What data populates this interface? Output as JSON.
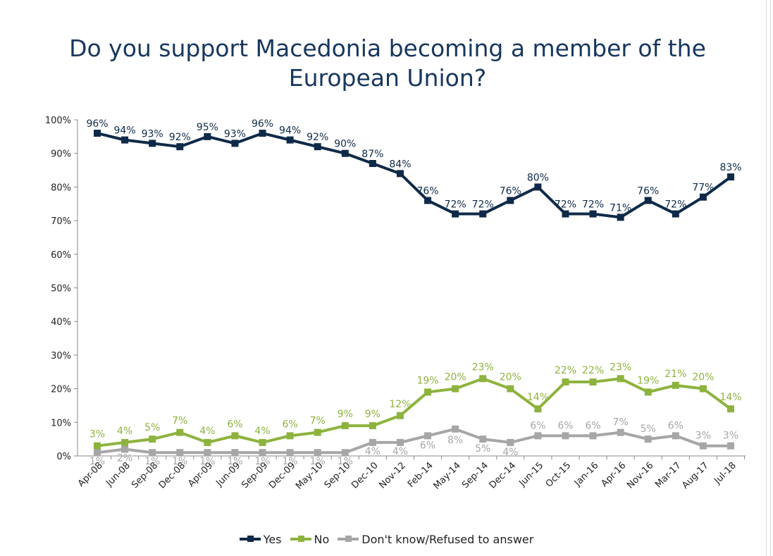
{
  "title_line1": "Do you support Macedonia becoming a member of the",
  "title_line2": "European Union?",
  "chart_data": {
    "type": "line",
    "title": "Do you support Macedonia becoming a member of the European Union?",
    "categories": [
      "Apr-08",
      "Jun-08",
      "Sep-08",
      "Dec-08",
      "Apr-09",
      "Jun-09",
      "Sep-09",
      "Dec-09",
      "May-10",
      "Sep-10",
      "Dec-10",
      "Nov-12",
      "Feb-14",
      "May-14",
      "Sep-14",
      "Dec-14",
      "Jun-15",
      "Oct-15",
      "Jan-16",
      "Apr-16",
      "Nov-16",
      "Mar-17",
      "Aug-17",
      "Jul-18"
    ],
    "ylim": [
      0,
      100
    ],
    "yticks": [
      "0%",
      "10%",
      "20%",
      "30%",
      "40%",
      "50%",
      "60%",
      "70%",
      "80%",
      "90%",
      "100%"
    ],
    "grid": false,
    "legend_position": "bottom",
    "series": [
      {
        "name": "Yes",
        "color": "#0f2a48",
        "values": [
          96,
          94,
          93,
          92,
          95,
          93,
          96,
          94,
          92,
          90,
          87,
          84,
          76,
          72,
          72,
          76,
          80,
          72,
          72,
          71,
          76,
          72,
          77,
          83
        ],
        "labels": [
          "96%",
          "94%",
          "93%",
          "92%",
          "95%",
          "93%",
          "96%",
          "94%",
          "92%",
          "90%",
          "87%",
          "84%",
          "76%",
          "72%",
          "72%",
          "76%",
          "80%",
          "72%",
          "72%",
          "71%",
          "76%",
          "72%",
          "77%",
          "83%"
        ]
      },
      {
        "name": "No",
        "color": "#8db33e",
        "values": [
          3,
          4,
          5,
          7,
          4,
          6,
          4,
          6,
          7,
          9,
          9,
          12,
          19,
          20,
          23,
          20,
          14,
          22,
          22,
          23,
          19,
          21,
          20,
          14
        ],
        "labels": [
          "3%",
          "4%",
          "5%",
          "7%",
          "4%",
          "6%",
          "4%",
          "6%",
          "7%",
          "9%",
          "9%",
          "12%",
          "19%",
          "20%",
          "23%",
          "20%",
          "14%",
          "22%",
          "22%",
          "23%",
          "19%",
          "21%",
          "20%",
          "14%"
        ]
      },
      {
        "name": "Don't know/Refused to answer",
        "color": "#a6a6a6",
        "values": [
          1,
          2,
          1,
          1,
          1,
          1,
          1,
          1,
          1,
          1,
          4,
          4,
          6,
          8,
          5,
          4,
          6,
          6,
          6,
          7,
          5,
          6,
          3,
          3
        ],
        "labels": [
          "1%",
          "2%",
          "1%",
          "1%",
          "1%",
          "1%",
          "1%",
          "1%",
          "1%",
          "1%",
          "4%",
          "4%",
          "6%",
          "8%",
          "5%",
          "4%",
          "6%",
          "6%",
          "6%",
          "7%",
          "5%",
          "6%",
          "3%",
          "3%"
        ]
      }
    ]
  }
}
